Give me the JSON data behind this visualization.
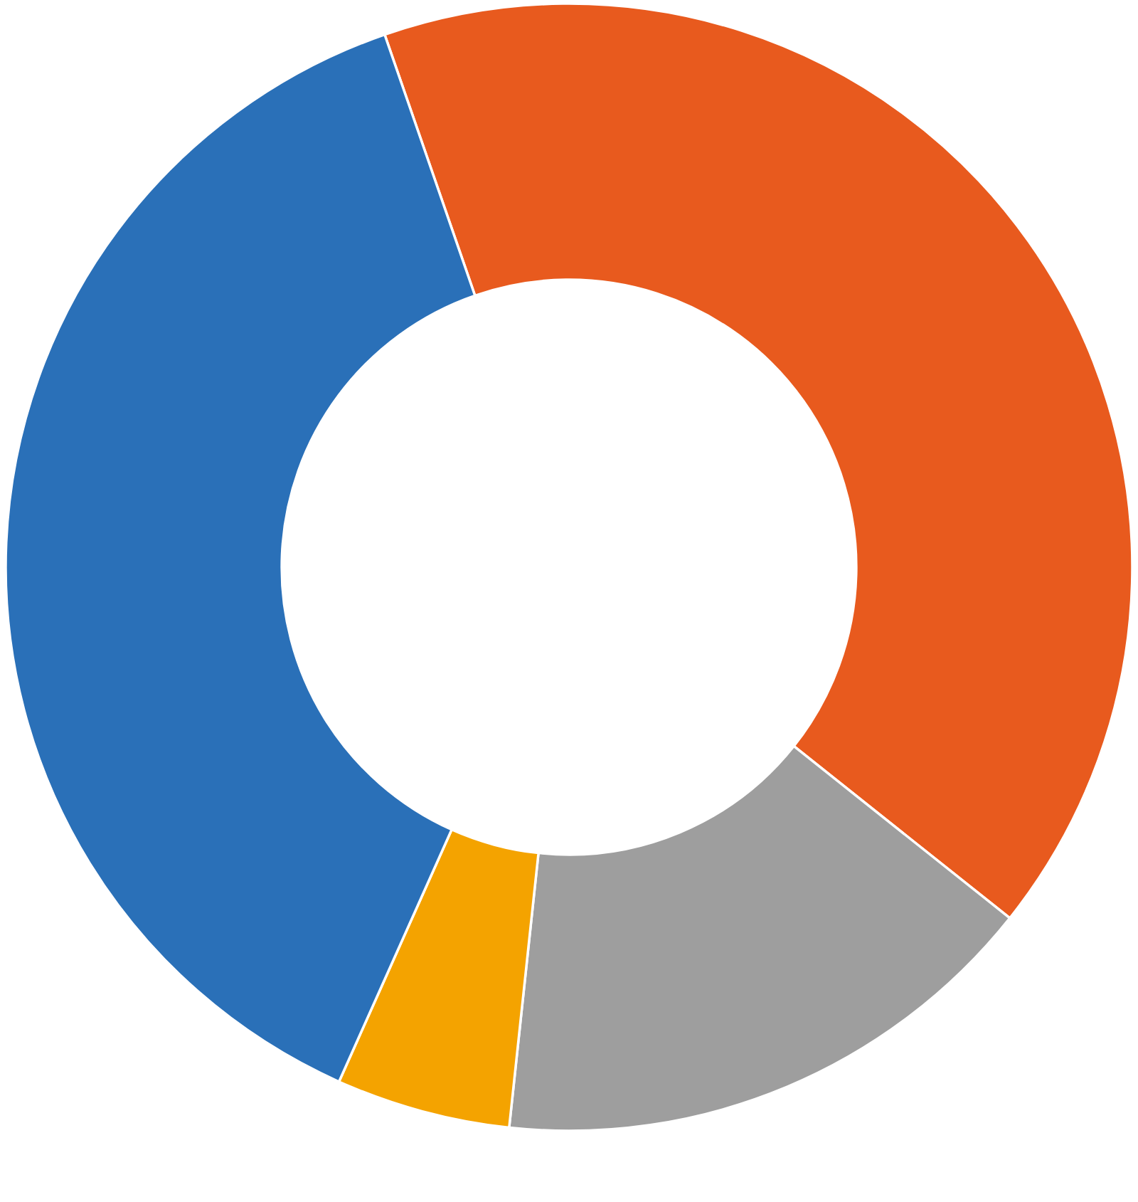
{
  "chart_data": {
    "type": "donut",
    "categories": [
      null,
      null,
      null,
      null
    ],
    "values": [
      41,
      16,
      5,
      38
    ],
    "colors": [
      "#e85a1e",
      "#9e9e9e",
      "#f4a300",
      "#2a70b8"
    ]
  }
}
